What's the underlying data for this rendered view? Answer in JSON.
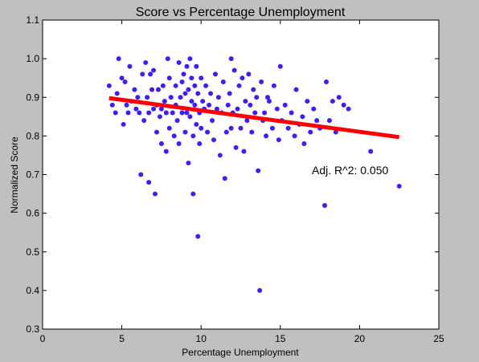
{
  "chart_data": {
    "type": "scatter",
    "title": "Score vs Percentage Unemployment",
    "xlabel": "Percentage Unemployment",
    "ylabel": "Normalized Score",
    "xlim": [
      0,
      25
    ],
    "ylim": [
      0.3,
      1.1
    ],
    "xticks": [
      "0",
      "5",
      "10",
      "15",
      "20",
      "25"
    ],
    "yticks": [
      "0.3",
      "0.4",
      "0.5",
      "0.6",
      "0.7",
      "0.8",
      "0.9",
      "1.0",
      "1.1"
    ],
    "grid": false,
    "point_color": "#3d1dff",
    "fit_color": "#ff0000",
    "background_color": "#c0c0c0",
    "plot_color": "#ffffff",
    "annotation": "Adj. R^2: 0.050",
    "fit_line": {
      "x": [
        4.2,
        22.5
      ],
      "y": [
        0.898,
        0.797
      ]
    },
    "points": [
      [
        4.2,
        0.93
      ],
      [
        4.4,
        0.88
      ],
      [
        4.6,
        0.86
      ],
      [
        4.7,
        0.91
      ],
      [
        4.8,
        1.0
      ],
      [
        5.0,
        0.95
      ],
      [
        5.1,
        0.83
      ],
      [
        5.2,
        0.94
      ],
      [
        5.3,
        0.88
      ],
      [
        5.4,
        0.86
      ],
      [
        5.5,
        0.98
      ],
      [
        5.6,
        0.89
      ],
      [
        5.8,
        0.92
      ],
      [
        5.9,
        0.87
      ],
      [
        6.0,
        0.9
      ],
      [
        6.1,
        0.86
      ],
      [
        6.2,
        0.7
      ],
      [
        6.3,
        0.96
      ],
      [
        6.4,
        0.84
      ],
      [
        6.5,
        0.99
      ],
      [
        6.6,
        0.9
      ],
      [
        6.7,
        0.86
      ],
      [
        6.7,
        0.68
      ],
      [
        6.8,
        0.96
      ],
      [
        6.9,
        0.92
      ],
      [
        7.0,
        0.97
      ],
      [
        7.0,
        0.87
      ],
      [
        7.1,
        0.65
      ],
      [
        7.2,
        0.81
      ],
      [
        7.2,
        0.88
      ],
      [
        7.3,
        0.92
      ],
      [
        7.4,
        0.85
      ],
      [
        7.5,
        0.87
      ],
      [
        7.5,
        0.78
      ],
      [
        7.6,
        0.93
      ],
      [
        7.7,
        0.89
      ],
      [
        7.8,
        0.86
      ],
      [
        7.8,
        0.76
      ],
      [
        7.9,
        1.0
      ],
      [
        8.0,
        0.95
      ],
      [
        8.0,
        0.82
      ],
      [
        8.1,
        0.9
      ],
      [
        8.2,
        0.86
      ],
      [
        8.3,
        0.8
      ],
      [
        8.4,
        0.93
      ],
      [
        8.4,
        0.88
      ],
      [
        8.5,
        0.84
      ],
      [
        8.6,
        0.99
      ],
      [
        8.6,
        0.78
      ],
      [
        8.7,
        0.9
      ],
      [
        8.8,
        0.86
      ],
      [
        8.8,
        0.94
      ],
      [
        8.9,
        0.96
      ],
      [
        9.0,
        0.91
      ],
      [
        9.0,
        0.81
      ],
      [
        9.1,
        0.98
      ],
      [
        9.1,
        0.86
      ],
      [
        9.2,
        0.92
      ],
      [
        9.2,
        0.73
      ],
      [
        9.3,
        1.0
      ],
      [
        9.3,
        0.85
      ],
      [
        9.4,
        0.89
      ],
      [
        9.4,
        0.95
      ],
      [
        9.5,
        0.8
      ],
      [
        9.5,
        0.65
      ],
      [
        9.6,
        0.93
      ],
      [
        9.6,
        0.88
      ],
      [
        9.7,
        0.83
      ],
      [
        9.7,
        0.98
      ],
      [
        9.8,
        0.54
      ],
      [
        9.8,
        0.91
      ],
      [
        9.9,
        0.86
      ],
      [
        9.9,
        0.78
      ],
      [
        10.0,
        0.95
      ],
      [
        10.0,
        0.82
      ],
      [
        10.1,
        0.89
      ],
      [
        10.2,
        0.87
      ],
      [
        10.3,
        0.93
      ],
      [
        10.4,
        0.81
      ],
      [
        10.5,
        0.88
      ],
      [
        10.6,
        0.91
      ],
      [
        10.7,
        0.84
      ],
      [
        10.8,
        0.79
      ],
      [
        10.9,
        0.96
      ],
      [
        11.0,
        0.87
      ],
      [
        11.1,
        0.9
      ],
      [
        11.2,
        0.75
      ],
      [
        11.3,
        0.86
      ],
      [
        11.4,
        0.94
      ],
      [
        11.5,
        0.69
      ],
      [
        11.6,
        0.81
      ],
      [
        11.7,
        0.88
      ],
      [
        11.8,
        0.91
      ],
      [
        11.9,
        1.0
      ],
      [
        11.9,
        0.82
      ],
      [
        12.0,
        0.86
      ],
      [
        12.1,
        0.97
      ],
      [
        12.2,
        0.77
      ],
      [
        12.3,
        0.87
      ],
      [
        12.4,
        0.93
      ],
      [
        12.5,
        0.82
      ],
      [
        12.6,
        0.95
      ],
      [
        12.7,
        0.76
      ],
      [
        12.8,
        0.89
      ],
      [
        12.9,
        0.84
      ],
      [
        13.0,
        0.96
      ],
      [
        13.1,
        0.88
      ],
      [
        13.2,
        0.81
      ],
      [
        13.3,
        0.92
      ],
      [
        13.4,
        0.86
      ],
      [
        13.5,
        0.9
      ],
      [
        13.6,
        0.71
      ],
      [
        13.7,
        0.4
      ],
      [
        13.8,
        0.94
      ],
      [
        13.9,
        0.84
      ],
      [
        14.0,
        0.86
      ],
      [
        14.1,
        0.8
      ],
      [
        14.2,
        0.9
      ],
      [
        14.3,
        0.89
      ],
      [
        14.5,
        0.82
      ],
      [
        14.6,
        0.93
      ],
      [
        14.8,
        0.87
      ],
      [
        14.9,
        0.79
      ],
      [
        15.0,
        0.98
      ],
      [
        15.1,
        0.84
      ],
      [
        15.3,
        0.88
      ],
      [
        15.5,
        0.82
      ],
      [
        15.7,
        0.86
      ],
      [
        15.9,
        0.8
      ],
      [
        16.0,
        0.92
      ],
      [
        16.2,
        0.83
      ],
      [
        16.4,
        0.85
      ],
      [
        16.5,
        0.78
      ],
      [
        16.7,
        0.89
      ],
      [
        16.9,
        0.81
      ],
      [
        17.1,
        0.87
      ],
      [
        17.3,
        0.84
      ],
      [
        17.5,
        0.82
      ],
      [
        17.8,
        0.62
      ],
      [
        17.9,
        0.94
      ],
      [
        18.1,
        0.84
      ],
      [
        18.3,
        0.89
      ],
      [
        18.5,
        0.81
      ],
      [
        18.7,
        0.9
      ],
      [
        19.0,
        0.88
      ],
      [
        19.3,
        0.87
      ],
      [
        20.7,
        0.76
      ],
      [
        22.5,
        0.67
      ]
    ]
  }
}
